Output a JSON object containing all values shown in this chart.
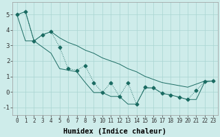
{
  "xlabel": "Humidex (Indice chaleur)",
  "ylabel": "",
  "xlim": [
    -0.5,
    23.5
  ],
  "ylim": [
    -1.5,
    5.8
  ],
  "background_color": "#ceecea",
  "grid_color": "#a8d5d1",
  "line_color": "#1a6b62",
  "x": [
    0,
    1,
    2,
    3,
    4,
    5,
    6,
    7,
    8,
    9,
    10,
    11,
    12,
    13,
    14,
    15,
    16,
    17,
    18,
    19,
    20,
    21,
    22,
    23
  ],
  "y_jagged": [
    5.0,
    5.2,
    3.3,
    3.7,
    3.9,
    2.9,
    1.5,
    1.4,
    1.7,
    0.6,
    -0.05,
    0.6,
    -0.3,
    0.6,
    -0.8,
    0.3,
    0.25,
    -0.1,
    -0.2,
    -0.35,
    -0.5,
    0.1,
    0.65,
    0.7
  ],
  "y_upper": [
    5.0,
    5.2,
    3.3,
    3.7,
    3.9,
    3.5,
    3.2,
    3.0,
    2.7,
    2.5,
    2.2,
    2.0,
    1.8,
    1.5,
    1.3,
    1.0,
    0.8,
    0.6,
    0.5,
    0.4,
    0.3,
    0.5,
    0.7,
    0.7
  ],
  "y_lower": [
    5.0,
    3.3,
    3.3,
    2.9,
    2.5,
    1.5,
    1.4,
    1.3,
    0.6,
    -0.05,
    -0.05,
    -0.3,
    -0.3,
    -0.8,
    -0.8,
    0.25,
    0.25,
    -0.1,
    -0.2,
    -0.35,
    -0.5,
    -0.5,
    0.65,
    0.7
  ],
  "xtick_fontsize": 5.5,
  "ytick_fontsize": 6.5,
  "xlabel_fontsize": 7.5,
  "marker_size": 2.5,
  "linewidth": 0.7
}
